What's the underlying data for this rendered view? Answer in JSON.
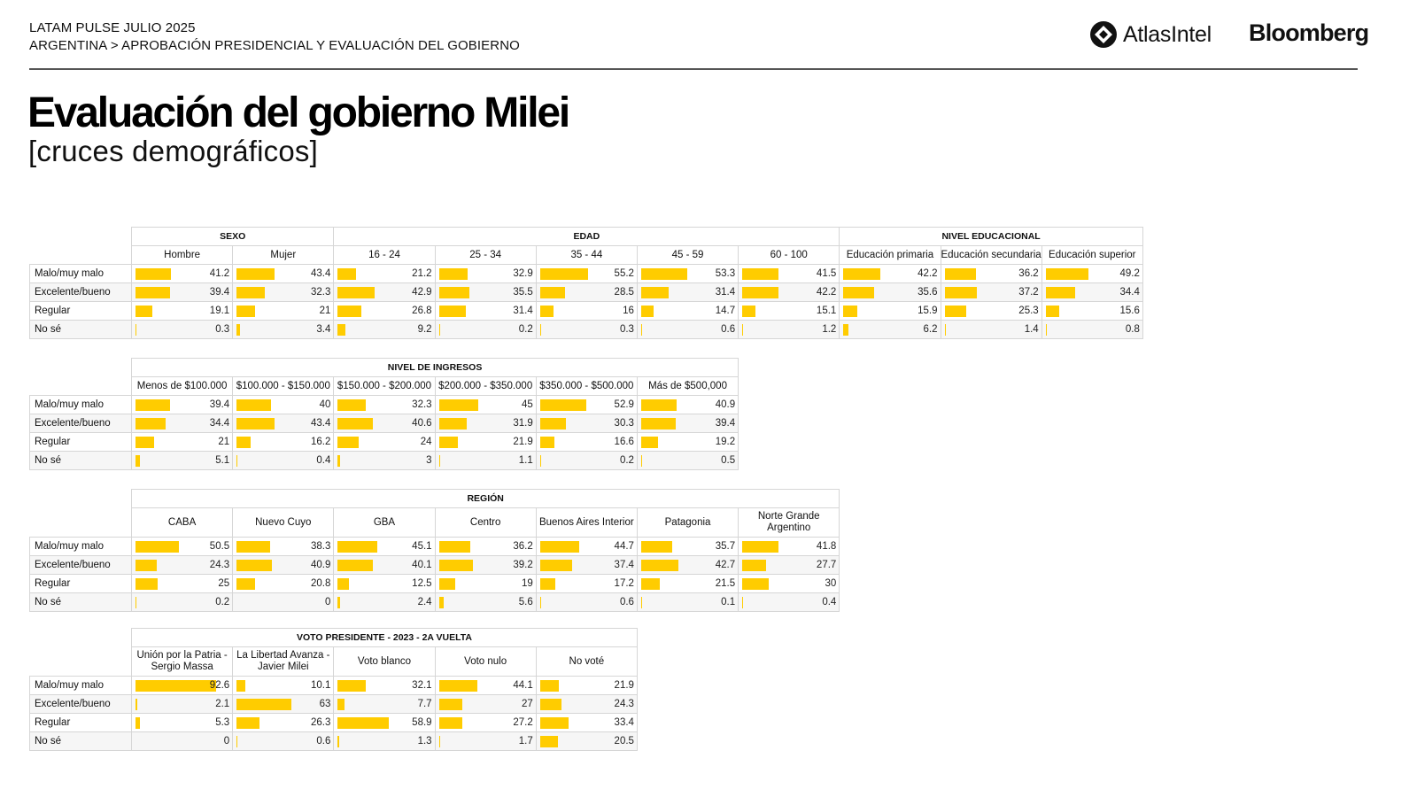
{
  "header": {
    "line1": "LATAM PULSE JULIO 2025",
    "line2": "ARGENTINA > APROBACIÓN PRESIDENCIAL Y EVALUACIÓN DEL GOBIERNO",
    "logo_atlas": "AtlasIntel",
    "logo_bloomberg": "Bloomberg"
  },
  "title": "Evaluación del gobierno Milei",
  "subtitle": "[cruces demográficos]",
  "colors": {
    "bar": "#ffcc00",
    "rule": "#555555"
  },
  "chart_data": {
    "type": "table",
    "rows": [
      "Malo/muy malo",
      "Excelente/bueno",
      "Regular",
      "No sé"
    ],
    "value_max": 100,
    "tables": [
      {
        "groups": [
          {
            "label": "SEXO",
            "span": 2
          },
          {
            "label": "EDAD",
            "span": 5
          },
          {
            "label": "NIVEL EDUCACIONAL",
            "span": 3
          }
        ],
        "columns": [
          "Hombre",
          "Mujer",
          "16 - 24",
          "25 - 34",
          "35 - 44",
          "45 - 59",
          "60 - 100",
          "Educación primaria",
          "Educación secundaria",
          "Educación superior"
        ],
        "values": [
          [
            41.2,
            43.4,
            21.2,
            32.9,
            55.2,
            53.3,
            41.5,
            42.2,
            36.2,
            49.2
          ],
          [
            39.4,
            32.3,
            42.9,
            35.5,
            28.5,
            31.4,
            42.2,
            35.6,
            37.2,
            34.4
          ],
          [
            19.1,
            21,
            26.8,
            31.4,
            16,
            14.7,
            15.1,
            15.9,
            25.3,
            15.6
          ],
          [
            0.3,
            3.4,
            9.2,
            0.2,
            0.3,
            0.6,
            1.2,
            6.2,
            1.4,
            0.8
          ]
        ]
      },
      {
        "groups": [
          {
            "label": "NIVEL DE INGRESOS",
            "span": 6
          }
        ],
        "columns": [
          "Menos de $100.000",
          "$100.000 - $150.000",
          "$150.000 - $200.000",
          "$200.000 - $350.000",
          "$350.000 - $500.000",
          "Más de $500,000"
        ],
        "values": [
          [
            39.4,
            40,
            32.3,
            45,
            52.9,
            40.9
          ],
          [
            34.4,
            43.4,
            40.6,
            31.9,
            30.3,
            39.4
          ],
          [
            21,
            16.2,
            24,
            21.9,
            16.6,
            19.2
          ],
          [
            5.1,
            0.4,
            3,
            1.1,
            0.2,
            0.5
          ]
        ]
      },
      {
        "groups": [
          {
            "label": "REGIÓN",
            "span": 7
          }
        ],
        "columns": [
          "CABA",
          "Nuevo Cuyo",
          "GBA",
          "Centro",
          "Buenos Aires Interior",
          "Patagonia",
          "Norte Grande Argentino"
        ],
        "values": [
          [
            50.5,
            38.3,
            45.1,
            36.2,
            44.7,
            35.7,
            41.8
          ],
          [
            24.3,
            40.9,
            40.1,
            39.2,
            37.4,
            42.7,
            27.7
          ],
          [
            25,
            20.8,
            12.5,
            19,
            17.2,
            21.5,
            30
          ],
          [
            0.2,
            0,
            2.4,
            5.6,
            0.6,
            0.1,
            0.4
          ]
        ]
      },
      {
        "groups": [
          {
            "label": "VOTO PRESIDENTE - 2023 - 2A VUELTA",
            "span": 5
          }
        ],
        "columns": [
          "Unión por la Patria - Sergio Massa",
          "La Libertad Avanza - Javier Milei",
          "Voto blanco",
          "Voto nulo",
          "No voté"
        ],
        "values": [
          [
            92.6,
            10.1,
            32.1,
            44.1,
            21.9
          ],
          [
            2.1,
            63,
            7.7,
            27,
            24.3
          ],
          [
            5.3,
            26.3,
            58.9,
            27.2,
            33.4
          ],
          [
            0,
            0.6,
            1.3,
            1.7,
            20.5
          ]
        ]
      }
    ]
  }
}
